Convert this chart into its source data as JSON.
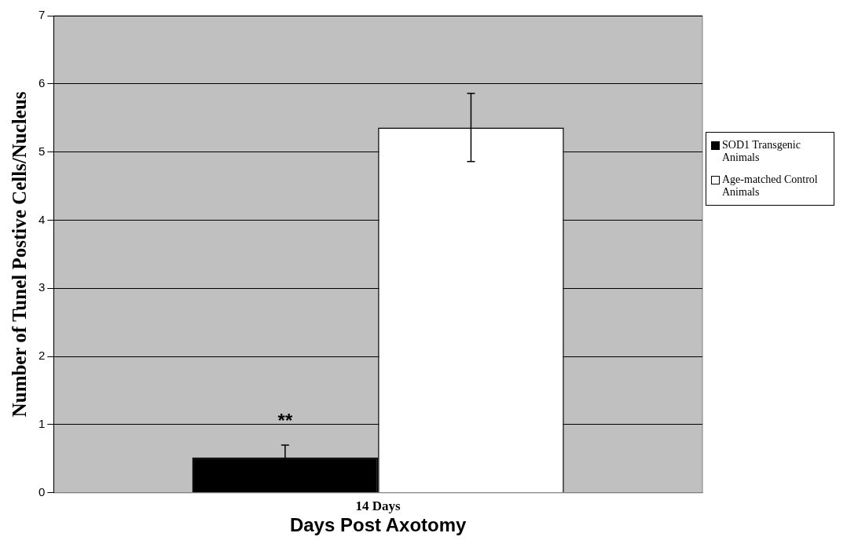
{
  "chart_data": {
    "type": "bar",
    "xlabel": "Days Post Axotomy",
    "ylabel": "Number of Tunel Postive Cells/Nucleus",
    "categories": [
      "14 Days"
    ],
    "series": [
      {
        "name": "SOD1 Transgenic Animals",
        "color": "#000000",
        "values": [
          0.52
        ],
        "errors": [
          0.18
        ]
      },
      {
        "name": "Age-matched Control Animals",
        "color": "#ffffff",
        "values": [
          5.36
        ],
        "errors": [
          0.5
        ]
      }
    ],
    "ylim": [
      0,
      7
    ],
    "yticks": [
      0,
      1,
      2,
      3,
      4,
      5,
      6,
      7
    ],
    "grid": "y",
    "legend": "right",
    "annotations": [
      "**"
    ]
  }
}
